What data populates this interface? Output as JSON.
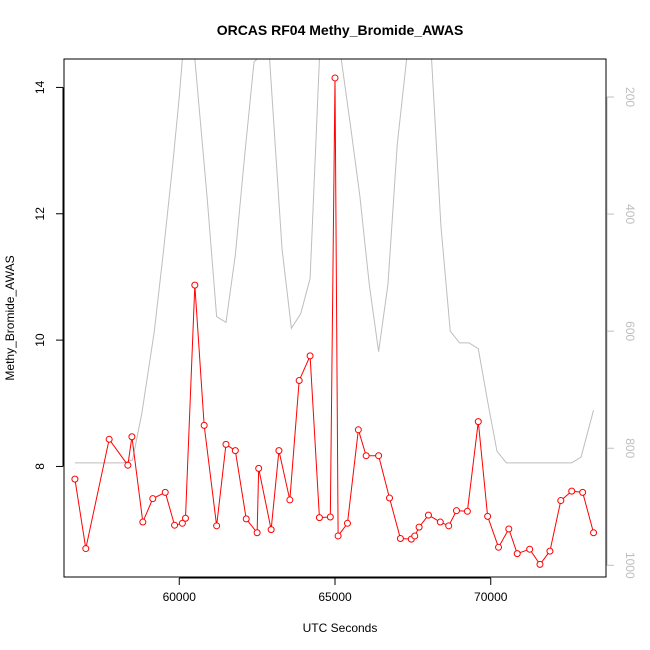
{
  "chart_data": {
    "type": "line",
    "title": "ORCAS RF04 Methy_Bromide_AWAS",
    "xlabel": "UTC Seconds",
    "ylabel": "Methy_Bromide_AWAS",
    "xlim": [
      56300,
      73700
    ],
    "ylim": [
      6.25,
      14.45
    ],
    "y2lim": [
      1020,
      135
    ],
    "y2_reversed": true,
    "x_ticks": [
      60000,
      65000,
      70000
    ],
    "y_ticks": [
      8,
      10,
      12,
      14
    ],
    "y2_ticks": [
      200,
      400,
      600,
      800,
      1000
    ],
    "grid": false,
    "colors": {
      "primary": "#ff0000",
      "secondary": "#bebebe"
    },
    "series": [
      {
        "axis": "left",
        "style": "line+markers",
        "color": "#ff0000",
        "x": [
          56650,
          57000,
          57750,
          58350,
          58480,
          58830,
          59150,
          59550,
          59850,
          60100,
          60200,
          60500,
          60800,
          61200,
          61500,
          61800,
          62150,
          62500,
          62550,
          62950,
          63200,
          63550,
          63850,
          64200,
          64500,
          64850,
          65000,
          65100,
          65400,
          65750,
          66000,
          66400,
          66750,
          67100,
          67450,
          67560,
          67700,
          68000,
          68380,
          68650,
          68900,
          69250,
          69600,
          69900,
          70250,
          70580,
          70850,
          71250,
          71580,
          71900,
          72250,
          72600,
          72950,
          73300
        ],
        "y": [
          7.8,
          6.7,
          8.43,
          8.02,
          8.47,
          7.12,
          7.49,
          7.59,
          7.07,
          7.1,
          7.18,
          10.87,
          8.65,
          7.06,
          8.35,
          8.25,
          7.17,
          6.95,
          7.97,
          7.0,
          8.25,
          7.47,
          9.36,
          9.75,
          7.19,
          7.2,
          14.15,
          6.9,
          7.1,
          8.58,
          8.17,
          8.17,
          7.5,
          6.86,
          6.85,
          6.9,
          7.04,
          7.23,
          7.12,
          7.06,
          7.3,
          7.29,
          8.71,
          7.21,
          6.72,
          7.01,
          6.62,
          6.69,
          6.45,
          6.66,
          7.46,
          7.61,
          7.59,
          6.95
        ]
      },
      {
        "axis": "right",
        "style": "line",
        "color": "#bebebe",
        "x": [
          56650,
          57200,
          57700,
          58200,
          58500,
          58800,
          59200,
          59500,
          59800,
          60000,
          60100,
          60300,
          60500,
          60900,
          61200,
          61500,
          61800,
          62100,
          62400,
          62500,
          62700,
          62900,
          63300,
          63600,
          63900,
          64200,
          64500,
          64800,
          65000,
          65200,
          65500,
          65800,
          66100,
          66400,
          66700,
          67000,
          67300,
          67600,
          67900,
          68100,
          68400,
          68700,
          69000,
          69300,
          69600,
          69900,
          70200,
          70500,
          70800,
          71100,
          71400,
          71700,
          72000,
          72300,
          72600,
          72900,
          73300
        ],
        "y": [
          825,
          825,
          825,
          825,
          820,
          740,
          600,
          460,
          310,
          200,
          135,
          135,
          135,
          375,
          575,
          585,
          470,
          300,
          140,
          135,
          135,
          135,
          460,
          595,
          570,
          510,
          135,
          135,
          135,
          135,
          250,
          370,
          520,
          635,
          520,
          280,
          135,
          135,
          135,
          135,
          420,
          600,
          620,
          620,
          630,
          720,
          805,
          825,
          825,
          825,
          825,
          825,
          825,
          825,
          825,
          815,
          735
        ]
      }
    ]
  }
}
